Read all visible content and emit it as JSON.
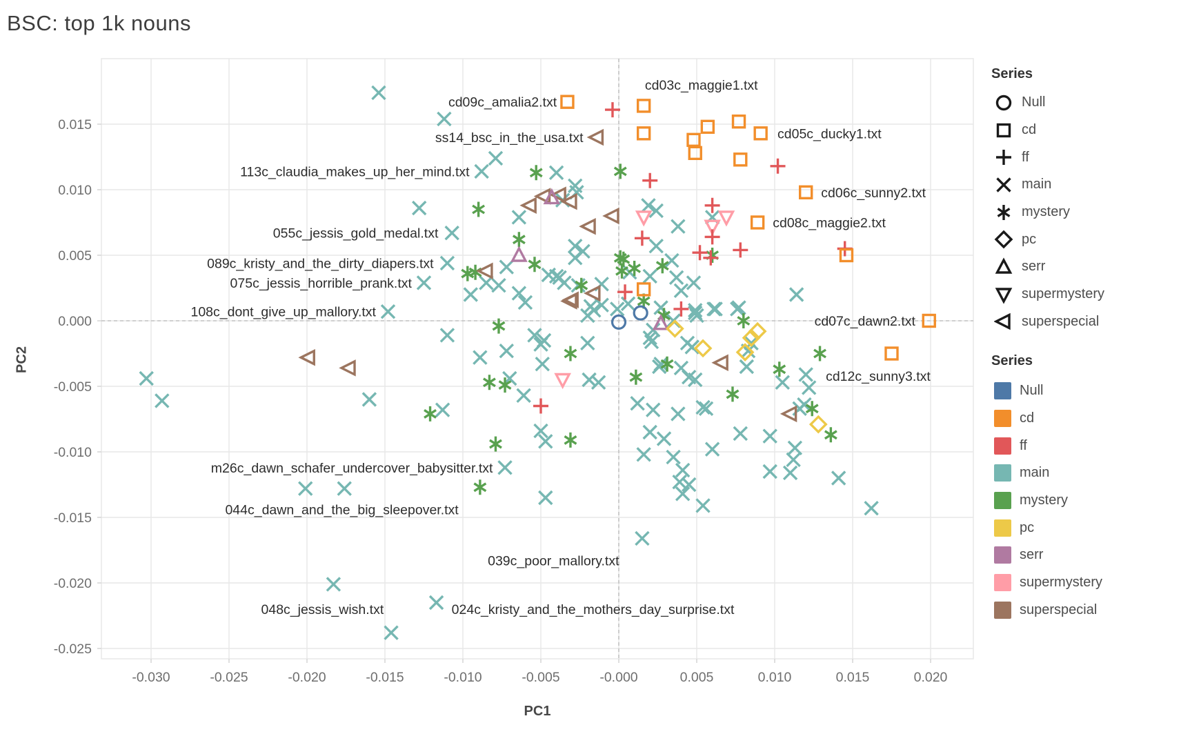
{
  "title": "BSC: top 1k nouns",
  "x_axis_title": "PC1",
  "y_axis_title": "PC2",
  "legend_shapes": {
    "title": "Series",
    "items": [
      {
        "label": "Null",
        "shape": "circle"
      },
      {
        "label": "cd",
        "shape": "square"
      },
      {
        "label": "ff",
        "shape": "plus"
      },
      {
        "label": "main",
        "shape": "x"
      },
      {
        "label": "mystery",
        "shape": "asterisk"
      },
      {
        "label": "pc",
        "shape": "diamond"
      },
      {
        "label": "serr",
        "shape": "triangle-up"
      },
      {
        "label": "supermystery",
        "shape": "triangle-down"
      },
      {
        "label": "superspecial",
        "shape": "triangle-left"
      }
    ]
  },
  "legend_colors": {
    "title": "Series",
    "items": [
      {
        "label": "Null",
        "color": "#4e79a7"
      },
      {
        "label": "cd",
        "color": "#f28e2b"
      },
      {
        "label": "ff",
        "color": "#e15759"
      },
      {
        "label": "main",
        "color": "#76b7b2"
      },
      {
        "label": "mystery",
        "color": "#59a14f"
      },
      {
        "label": "pc",
        "color": "#edc948"
      },
      {
        "label": "serr",
        "color": "#b07aa1"
      },
      {
        "label": "supermystery",
        "color": "#ff9da7"
      },
      {
        "label": "superspecial",
        "color": "#9c755f"
      }
    ]
  },
  "chart_data": {
    "type": "scatter",
    "title": "BSC: top 1k nouns",
    "xlabel": "PC1",
    "ylabel": "PC2",
    "xlim": [
      -0.033186,
      0.022743
    ],
    "ylim": [
      -0.025789,
      0.02
    ],
    "grid": true,
    "zero_lines": "dashed",
    "x_ticks": [
      -0.03,
      -0.025,
      -0.02,
      -0.015,
      -0.01,
      -0.005,
      0.0,
      0.005,
      0.01,
      0.015,
      0.02
    ],
    "x_tick_labels": [
      "-0.030",
      "-0.025",
      "-0.020",
      "-0.015",
      "-0.010",
      "-0.005",
      "-0.000",
      "0.005",
      "0.010",
      "0.015",
      "0.020"
    ],
    "y_ticks": [
      0.015,
      0.01,
      0.005,
      0.0,
      -0.005,
      -0.01,
      -0.015,
      -0.02,
      -0.025
    ],
    "y_tick_labels": [
      "0.015",
      "0.010",
      "0.005",
      "0.000",
      "-0.005",
      "-0.010",
      "-0.015",
      "-0.020",
      "-0.025"
    ],
    "legend_position": "right",
    "series": [
      {
        "name": "Null",
        "shape": "circle",
        "color": "#4e79a7",
        "points": [
          [
            0.0,
            -0.0001
          ],
          [
            0.0014,
            0.0006
          ]
        ]
      },
      {
        "name": "cd",
        "shape": "square",
        "color": "#f28e2b",
        "points": [
          [
            -0.0033,
            0.0167
          ],
          [
            0.0016,
            0.0164
          ],
          [
            0.0016,
            0.0143
          ],
          [
            0.0057,
            0.0148
          ],
          [
            0.0048,
            0.0138
          ],
          [
            0.0049,
            0.0128
          ],
          [
            0.0077,
            0.0152
          ],
          [
            0.0091,
            0.0143
          ],
          [
            0.0078,
            0.0123
          ],
          [
            0.012,
            0.0098
          ],
          [
            0.0089,
            0.0075
          ],
          [
            0.0146,
            0.005
          ],
          [
            0.0016,
            0.0024
          ],
          [
            0.0199,
            0.0
          ],
          [
            0.0175,
            -0.0025
          ]
        ]
      },
      {
        "name": "ff",
        "shape": "plus",
        "color": "#e15759",
        "points": [
          [
            -0.0004,
            0.0161
          ],
          [
            0.0102,
            0.0118
          ],
          [
            0.002,
            0.0107
          ],
          [
            0.006,
            0.0088
          ],
          [
            0.006,
            0.0064
          ],
          [
            0.0015,
            0.0063
          ],
          [
            0.0052,
            0.0052
          ],
          [
            0.0059,
            0.0048
          ],
          [
            0.0078,
            0.0054
          ],
          [
            0.0145,
            0.0055
          ],
          [
            0.0004,
            0.0022
          ],
          [
            0.004,
            0.0009
          ],
          [
            -0.005,
            -0.0065
          ]
        ]
      },
      {
        "name": "main",
        "shape": "x",
        "color": "#76b7b2",
        "points": [
          [
            -0.0154,
            0.0174
          ],
          [
            -0.0112,
            0.0154
          ],
          [
            -0.0079,
            0.0124
          ],
          [
            -0.0088,
            0.0114
          ],
          [
            -0.004,
            0.0113
          ],
          [
            -0.0028,
            0.0103
          ],
          [
            -0.0036,
            0.0092
          ],
          [
            -0.0027,
            0.0098
          ],
          [
            -0.0128,
            0.0086
          ],
          [
            -0.0064,
            0.0079
          ],
          [
            -0.0107,
            0.0067
          ],
          [
            -0.0028,
            0.0057
          ],
          [
            -0.0023,
            0.0053
          ],
          [
            -0.011,
            0.0044
          ],
          [
            -0.0072,
            0.0041
          ],
          [
            -0.0085,
            0.0029
          ],
          [
            -0.0077,
            0.0027
          ],
          [
            -0.0125,
            0.0029
          ],
          [
            -0.0095,
            0.002
          ],
          [
            -0.0064,
            0.0021
          ],
          [
            -0.006,
            0.0014
          ],
          [
            -0.0045,
            0.0035
          ],
          [
            -0.004,
            0.0034
          ],
          [
            -0.0035,
            0.0029
          ],
          [
            -0.0026,
            0.0027
          ],
          [
            -0.0018,
            0.0011
          ],
          [
            -0.0011,
            0.0012
          ],
          [
            -0.0148,
            0.0007
          ],
          [
            -0.0028,
            0.0048
          ],
          [
            -0.0038,
            0.0033
          ],
          [
            -0.0011,
            0.0028
          ],
          [
            0.0007,
            0.0037
          ],
          [
            0.002,
            0.0034
          ],
          [
            0.0034,
            0.0046
          ],
          [
            0.0037,
            0.0033
          ],
          [
            0.0006,
            0.0013
          ],
          [
            -0.0001,
            0.0009
          ],
          [
            -0.0016,
            0.0008
          ],
          [
            -0.002,
            0.0004
          ],
          [
            0.0019,
            0.0088
          ],
          [
            0.0024,
            0.0084
          ],
          [
            0.0038,
            0.0072
          ],
          [
            0.006,
            0.0079
          ],
          [
            0.0024,
            0.0057
          ],
          [
            0.0114,
            0.002
          ],
          [
            0.0077,
            0.001
          ],
          [
            0.0061,
            0.0009
          ],
          [
            0.0049,
            0.0006
          ],
          [
            0.0027,
            0.001
          ],
          [
            0.0035,
            0.0
          ],
          [
            0.0048,
            0.0029
          ],
          [
            0.004,
            0.0023
          ],
          [
            0.0049,
            0.0008
          ],
          [
            0.0062,
            0.0009
          ],
          [
            0.0022,
            -0.0007
          ],
          [
            0.002,
            -0.0013
          ],
          [
            -0.002,
            -0.0017
          ],
          [
            -0.0019,
            -0.0045
          ],
          [
            -0.0013,
            -0.0047
          ],
          [
            0.0027,
            -0.0033
          ],
          [
            0.004,
            -0.0036
          ],
          [
            0.0044,
            -0.0017
          ],
          [
            0.0049,
            -0.0045
          ],
          [
            0.005,
            0.0004
          ],
          [
            0.0076,
            0.0009
          ],
          [
            0.0085,
            -0.0017
          ],
          [
            0.0082,
            -0.0035
          ],
          [
            0.012,
            -0.0041
          ],
          [
            0.0122,
            -0.0051
          ],
          [
            0.0119,
            -0.0064
          ],
          [
            0.0054,
            -0.0066
          ],
          [
            -0.011,
            -0.0011
          ],
          [
            -0.0089,
            -0.0028
          ],
          [
            -0.0072,
            -0.0023
          ],
          [
            -0.0054,
            -0.0011
          ],
          [
            -0.0048,
            -0.0015
          ],
          [
            -0.005,
            -0.0018
          ],
          [
            -0.0049,
            -0.0033
          ],
          [
            -0.007,
            -0.0044
          ],
          [
            -0.0061,
            -0.0057
          ],
          [
            -0.0113,
            -0.0068
          ],
          [
            -0.016,
            -0.006
          ],
          [
            -0.005,
            -0.0084
          ],
          [
            -0.0047,
            -0.0092
          ],
          [
            -0.0073,
            -0.0112
          ],
          [
            -0.0047,
            -0.0135
          ],
          [
            -0.0303,
            -0.0044
          ],
          [
            -0.0293,
            -0.0061
          ],
          [
            -0.0201,
            -0.0128
          ],
          [
            -0.0176,
            -0.0128
          ],
          [
            -0.0117,
            -0.0215
          ],
          [
            -0.0183,
            -0.0201
          ],
          [
            -0.0146,
            -0.0238
          ],
          [
            0.0015,
            -0.0166
          ],
          [
            0.0021,
            -0.0016
          ],
          [
            0.0047,
            -0.002
          ],
          [
            0.0083,
            -0.0023
          ],
          [
            0.0012,
            -0.0063
          ],
          [
            0.0022,
            -0.0068
          ],
          [
            0.002,
            -0.0085
          ],
          [
            0.0029,
            -0.009
          ],
          [
            0.0038,
            -0.0071
          ],
          [
            0.0056,
            -0.0067
          ],
          [
            0.0016,
            -0.0102
          ],
          [
            0.0035,
            -0.0104
          ],
          [
            0.0041,
            -0.0114
          ],
          [
            0.0039,
            -0.0123
          ],
          [
            0.0045,
            -0.0125
          ],
          [
            0.0041,
            -0.0132
          ],
          [
            0.006,
            -0.0098
          ],
          [
            0.0097,
            -0.0115
          ],
          [
            0.011,
            -0.0116
          ],
          [
            0.0112,
            -0.0106
          ],
          [
            0.0113,
            -0.0097
          ],
          [
            0.0141,
            -0.012
          ],
          [
            0.0054,
            -0.0141
          ],
          [
            0.0162,
            -0.0143
          ],
          [
            0.0105,
            -0.0047
          ],
          [
            0.0116,
            -0.0067
          ],
          [
            0.0026,
            -0.0035
          ],
          [
            0.0045,
            -0.0043
          ],
          [
            0.0078,
            -0.0086
          ],
          [
            0.0097,
            -0.0088
          ]
        ]
      },
      {
        "name": "mystery",
        "shape": "asterisk",
        "color": "#59a14f",
        "points": [
          [
            -0.0053,
            0.0113
          ],
          [
            0.0001,
            0.0114
          ],
          [
            -0.009,
            0.0085
          ],
          [
            -0.0064,
            0.0062
          ],
          [
            0.0001,
            0.0048
          ],
          [
            -0.0054,
            0.0043
          ],
          [
            -0.0097,
            0.0036
          ],
          [
            -0.0092,
            0.0037
          ],
          [
            -0.0024,
            0.0027
          ],
          [
            -0.0077,
            -0.0004
          ],
          [
            0.0003,
            0.0047
          ],
          [
            0.001,
            0.004
          ],
          [
            0.0028,
            0.0042
          ],
          [
            0.0016,
            0.0015
          ],
          [
            0.0029,
            0.0004
          ],
          [
            0.008,
            0.0
          ],
          [
            0.006,
            0.005
          ],
          [
            0.0002,
            0.0038
          ],
          [
            -0.0031,
            -0.0025
          ],
          [
            0.0011,
            -0.0043
          ],
          [
            0.0031,
            -0.0033
          ],
          [
            -0.0083,
            -0.0047
          ],
          [
            -0.0073,
            -0.0049
          ],
          [
            -0.0121,
            -0.0071
          ],
          [
            -0.0079,
            -0.0094
          ],
          [
            -0.0031,
            -0.0091
          ],
          [
            -0.0089,
            -0.0127
          ],
          [
            0.0129,
            -0.0025
          ],
          [
            0.0103,
            -0.0037
          ],
          [
            0.0073,
            -0.0056
          ],
          [
            0.0124,
            -0.0067
          ],
          [
            0.0136,
            -0.0087
          ]
        ]
      },
      {
        "name": "pc",
        "shape": "diamond",
        "color": "#edc948",
        "points": [
          [
            0.0089,
            -0.0008
          ],
          [
            0.0036,
            -0.0006
          ],
          [
            0.0054,
            -0.0021
          ],
          [
            0.0081,
            -0.0024
          ],
          [
            0.0085,
            -0.0013
          ],
          [
            0.0128,
            -0.0079
          ]
        ]
      },
      {
        "name": "serr",
        "shape": "triangle-up",
        "color": "#b07aa1",
        "points": [
          [
            -0.0043,
            0.0094
          ],
          [
            -0.0064,
            0.005
          ],
          [
            0.0027,
            -0.0002
          ]
        ]
      },
      {
        "name": "supermystery",
        "shape": "triangle-down",
        "color": "#ff9da7",
        "points": [
          [
            0.0016,
            0.0079
          ],
          [
            0.0069,
            0.0079
          ],
          [
            0.006,
            0.0072
          ],
          [
            -0.0036,
            -0.0045
          ]
        ]
      },
      {
        "name": "superspecial",
        "shape": "triangle-left",
        "color": "#9c755f",
        "points": [
          [
            -0.0014,
            0.014
          ],
          [
            -0.0048,
            0.0095
          ],
          [
            -0.0038,
            0.0096
          ],
          [
            -0.0031,
            0.0091
          ],
          [
            -0.0057,
            0.0088
          ],
          [
            -0.0019,
            0.0072
          ],
          [
            -0.0004,
            0.008
          ],
          [
            -0.0085,
            0.0038
          ],
          [
            -0.003,
            0.0016
          ],
          [
            -0.0016,
            0.0021
          ],
          [
            -0.0031,
            0.0015
          ],
          [
            -0.0199,
            -0.0028
          ],
          [
            -0.0173,
            -0.0036
          ],
          [
            0.0066,
            -0.0032
          ],
          [
            0.011,
            -0.0071
          ]
        ]
      }
    ],
    "annotations": [
      {
        "text": "cd09c_amalia2.txt",
        "x": -0.0038,
        "y": 0.0167,
        "anchor": "end"
      },
      {
        "text": "cd03c_maggie1.txt",
        "x": 0.0015,
        "y": 0.018,
        "anchor": "start"
      },
      {
        "text": "ss14_bsc_in_the_usa.txt",
        "x": -0.0021,
        "y": 0.014,
        "anchor": "end"
      },
      {
        "text": "113c_claudia_makes_up_her_mind.txt",
        "x": -0.0094,
        "y": 0.0114,
        "anchor": "end"
      },
      {
        "text": "cd05c_ducky1.txt",
        "x": 0.01,
        "y": 0.0143,
        "anchor": "start"
      },
      {
        "text": "cd06c_sunny2.txt",
        "x": 0.0128,
        "y": 0.0098,
        "anchor": "start"
      },
      {
        "text": "055c_jessis_gold_medal.txt",
        "x": -0.0114,
        "y": 0.0067,
        "anchor": "end"
      },
      {
        "text": "cd08c_maggie2.txt",
        "x": 0.0097,
        "y": 0.0075,
        "anchor": "start"
      },
      {
        "text": "089c_kristy_and_the_dirty_diapers.txt",
        "x": -0.0117,
        "y": 0.0044,
        "anchor": "end"
      },
      {
        "text": "075c_jessis_horrible_prank.txt",
        "x": -0.0131,
        "y": 0.0029,
        "anchor": "end"
      },
      {
        "text": "108c_dont_give_up_mallory.txt",
        "x": -0.0154,
        "y": 0.0007,
        "anchor": "end"
      },
      {
        "text": "cd07c_dawn2.txt",
        "x": 0.0192,
        "y": 0.0,
        "anchor": "end"
      },
      {
        "text": "cd12c_sunny3.txt",
        "x": 0.0131,
        "y": -0.0042,
        "anchor": "start"
      },
      {
        "text": "m26c_dawn_schafer_undercover_babysitter.txt",
        "x": -0.0079,
        "y": -0.0112,
        "anchor": "end"
      },
      {
        "text": "044c_dawn_and_the_big_sleepover.txt",
        "x": -0.0101,
        "y": -0.0144,
        "anchor": "end"
      },
      {
        "text": "039c_poor_mallory.txt",
        "x": 0.0002,
        "y": -0.0183,
        "anchor": "end"
      },
      {
        "text": "048c_jessis_wish.txt",
        "x": -0.0149,
        "y": -0.022,
        "anchor": "end"
      },
      {
        "text": "024c_kristy_and_the_mothers_day_surprise.txt",
        "x": -0.0109,
        "y": -0.022,
        "anchor": "start"
      }
    ]
  },
  "style": {
    "grid_color": "#e7e7e7",
    "zero_line_color": "#c3c3c3",
    "tick_color": "#d7d7d7",
    "tick_label_color": "#6e6e6e",
    "annotation_color": "#2d2d2d",
    "legend_glyph_color": "#1a1a1a"
  }
}
